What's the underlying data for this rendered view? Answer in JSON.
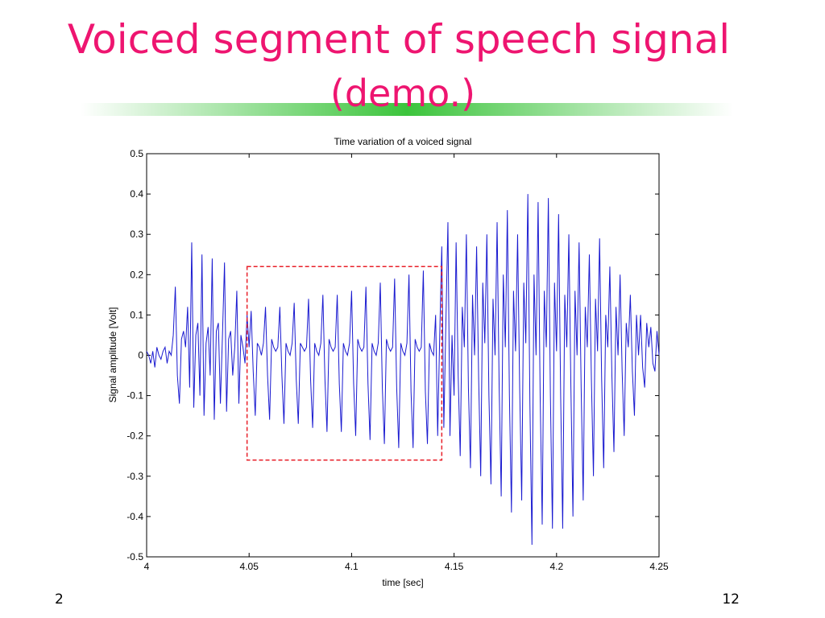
{
  "slide": {
    "title": "Voiced segment of speech signal",
    "subtitle": "(demo.)",
    "footer_left": "2",
    "page_number": "12"
  },
  "chart_data": {
    "type": "line",
    "title": "Time variation of a voiced signal",
    "x_label": "time [sec]",
    "y_label": "Signal amplitude [Volt]",
    "xlim": [
      4,
      4.25
    ],
    "ylim": [
      -0.5,
      0.5
    ],
    "xticks": [
      4,
      4.05,
      4.1,
      4.15,
      4.2,
      4.25
    ],
    "yticks": [
      -0.5,
      -0.4,
      -0.3,
      -0.2,
      -0.1,
      0,
      0.1,
      0.2,
      0.3,
      0.4,
      0.5
    ],
    "highlight": {
      "x": [
        4.049,
        4.144
      ],
      "y": [
        -0.26,
        0.22
      ],
      "color": "#e8202a"
    },
    "x": [
      4,
      4.001,
      4.002,
      4.003,
      4.004,
      4.005,
      4.006,
      4.007,
      4.008,
      4.009,
      4.01,
      4.011,
      4.012,
      4.013,
      4.014,
      4.015,
      4.016,
      4.017,
      4.018,
      4.019,
      4.02,
      4.021,
      4.022,
      4.023,
      4.024,
      4.025,
      4.026,
      4.027,
      4.028,
      4.029,
      4.03,
      4.031,
      4.032,
      4.033,
      4.034,
      4.035,
      4.036,
      4.037,
      4.038,
      4.039,
      4.04,
      4.041,
      4.042,
      4.043,
      4.044,
      4.045,
      4.046,
      4.047,
      4.048,
      4.049,
      4.05,
      4.051,
      4.052,
      4.053,
      4.054,
      4.055,
      4.056,
      4.057,
      4.058,
      4.059,
      4.06,
      4.061,
      4.062,
      4.063,
      4.064,
      4.065,
      4.066,
      4.067,
      4.068,
      4.069,
      4.07,
      4.071,
      4.072,
      4.073,
      4.074,
      4.075,
      4.076,
      4.077,
      4.078,
      4.079,
      4.08,
      4.081,
      4.082,
      4.083,
      4.084,
      4.085,
      4.086,
      4.087,
      4.088,
      4.089,
      4.09,
      4.091,
      4.092,
      4.093,
      4.094,
      4.095,
      4.096,
      4.097,
      4.098,
      4.099,
      4.1,
      4.101,
      4.102,
      4.103,
      4.104,
      4.105,
      4.106,
      4.107,
      4.108,
      4.109,
      4.11,
      4.111,
      4.112,
      4.113,
      4.114,
      4.115,
      4.116,
      4.117,
      4.118,
      4.119,
      4.12,
      4.121,
      4.122,
      4.123,
      4.124,
      4.125,
      4.126,
      4.127,
      4.128,
      4.129,
      4.13,
      4.131,
      4.132,
      4.133,
      4.134,
      4.135,
      4.136,
      4.137,
      4.138,
      4.139,
      4.14,
      4.141,
      4.142,
      4.143,
      4.144,
      4.145,
      4.146,
      4.147,
      4.148,
      4.149,
      4.15,
      4.151,
      4.152,
      4.153,
      4.154,
      4.155,
      4.156,
      4.157,
      4.158,
      4.159,
      4.16,
      4.161,
      4.162,
      4.163,
      4.164,
      4.165,
      4.166,
      4.167,
      4.168,
      4.169,
      4.17,
      4.171,
      4.172,
      4.173,
      4.174,
      4.175,
      4.176,
      4.177,
      4.178,
      4.179,
      4.18,
      4.181,
      4.182,
      4.183,
      4.184,
      4.185,
      4.186,
      4.187,
      4.188,
      4.189,
      4.19,
      4.191,
      4.192,
      4.193,
      4.194,
      4.195,
      4.196,
      4.197,
      4.198,
      4.199,
      4.2,
      4.201,
      4.202,
      4.203,
      4.204,
      4.205,
      4.206,
      4.207,
      4.208,
      4.209,
      4.21,
      4.211,
      4.212,
      4.213,
      4.214,
      4.215,
      4.216,
      4.217,
      4.218,
      4.219,
      4.22,
      4.221,
      4.222,
      4.223,
      4.224,
      4.225,
      4.226,
      4.227,
      4.228,
      4.229,
      4.23,
      4.231,
      4.232,
      4.233,
      4.234,
      4.235,
      4.236,
      4.237,
      4.238,
      4.239,
      4.24,
      4.241,
      4.242,
      4.243,
      4.244,
      4.245,
      4.246,
      4.247,
      4.248,
      4.249,
      4.25
    ],
    "series": [
      {
        "color": "#1a1ad0",
        "values": [
          0.01,
          0.0,
          -0.02,
          0.01,
          -0.03,
          0.02,
          0.0,
          -0.01,
          0.01,
          0.02,
          -0.02,
          0.01,
          0.0,
          0.05,
          0.17,
          -0.05,
          -0.12,
          0.04,
          0.06,
          0.02,
          0.12,
          -0.08,
          0.28,
          -0.13,
          0.05,
          0.08,
          -0.1,
          0.25,
          -0.15,
          0.03,
          0.07,
          -0.05,
          0.24,
          -0.16,
          0.06,
          0.08,
          -0.12,
          0.05,
          0.23,
          -0.14,
          0.04,
          0.06,
          -0.05,
          0.02,
          0.16,
          -0.12,
          0.05,
          0.02,
          -0.02,
          0.1,
          0.02,
          0.11,
          -0.04,
          -0.15,
          0.03,
          0.02,
          0.0,
          0.03,
          0.12,
          -0.05,
          -0.16,
          0.04,
          0.02,
          0.01,
          0.02,
          0.12,
          -0.05,
          -0.17,
          0.03,
          0.01,
          0.0,
          0.03,
          0.13,
          -0.06,
          -0.17,
          0.03,
          0.02,
          0.01,
          0.02,
          0.14,
          -0.06,
          -0.18,
          0.03,
          0.01,
          0.0,
          0.03,
          0.15,
          -0.06,
          -0.19,
          0.04,
          0.02,
          0.01,
          0.02,
          0.15,
          -0.07,
          -0.19,
          0.03,
          0.01,
          0.0,
          0.03,
          0.16,
          -0.07,
          -0.2,
          0.04,
          0.02,
          0.01,
          0.02,
          0.17,
          -0.07,
          -0.21,
          0.03,
          0.01,
          0.0,
          0.03,
          0.18,
          -0.08,
          -0.22,
          0.04,
          0.02,
          0.01,
          0.02,
          0.19,
          -0.08,
          -0.23,
          0.03,
          0.01,
          0.0,
          0.03,
          0.2,
          -0.09,
          -0.23,
          0.04,
          0.02,
          0.01,
          0.02,
          0.21,
          -0.09,
          -0.22,
          0.03,
          0.01,
          0.0,
          0.1,
          -0.2,
          0.05,
          0.27,
          -0.18,
          0.08,
          0.33,
          -0.2,
          0.05,
          -0.1,
          0.28,
          -0.05,
          -0.25,
          0.12,
          0.02,
          0.3,
          -0.08,
          -0.28,
          0.15,
          0.0,
          0.27,
          -0.06,
          -0.3,
          0.18,
          0.03,
          0.3,
          -0.1,
          -0.32,
          0.14,
          0.0,
          0.33,
          -0.08,
          -0.35,
          0.2,
          0.02,
          0.36,
          -0.1,
          -0.39,
          0.16,
          0.01,
          0.3,
          -0.08,
          -0.36,
          0.18,
          0.03,
          0.4,
          -0.12,
          -0.47,
          0.2,
          0.0,
          0.38,
          -0.1,
          -0.42,
          0.16,
          0.02,
          0.39,
          -0.1,
          -0.43,
          0.18,
          0.01,
          0.35,
          -0.1,
          -0.43,
          0.15,
          0.02,
          0.3,
          -0.08,
          -0.4,
          0.16,
          0.0,
          0.28,
          -0.08,
          -0.36,
          0.12,
          0.02,
          0.25,
          -0.06,
          -0.3,
          0.14,
          0.01,
          0.29,
          -0.06,
          -0.28,
          0.1,
          0.02,
          0.22,
          -0.05,
          -0.24,
          0.12,
          0.0,
          0.2,
          -0.04,
          -0.2,
          0.08,
          0.02,
          0.15,
          -0.04,
          -0.15,
          0.1,
          0.0,
          0.1,
          -0.03,
          -0.08,
          0.08,
          0.02,
          0.07,
          -0.02,
          -0.04,
          0.06,
          0.0
        ]
      }
    ]
  }
}
